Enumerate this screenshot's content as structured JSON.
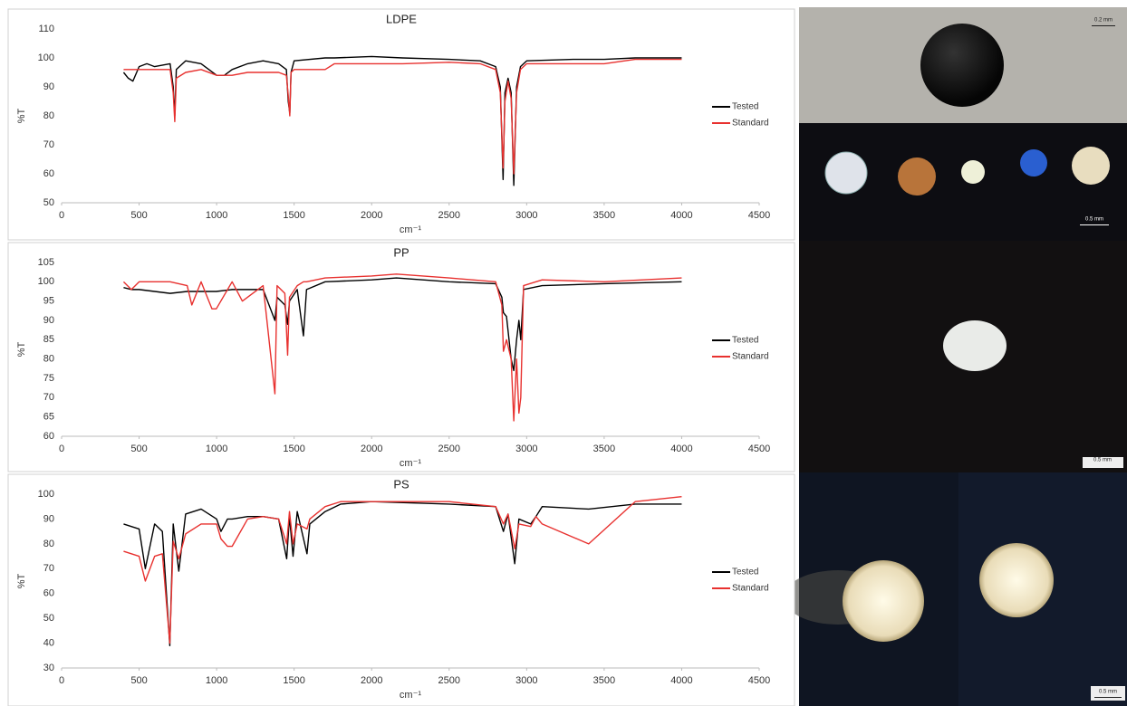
{
  "chart_data": [
    {
      "type": "line",
      "title": "LDPE",
      "x_label": "cm⁻¹",
      "y_label": "%T",
      "xlim": [
        0,
        4500
      ],
      "xticks": [
        0,
        500,
        1000,
        1500,
        2000,
        2500,
        3000,
        3500,
        4000,
        4500
      ],
      "ylim": [
        50,
        110
      ],
      "yticks": [
        50,
        60,
        70,
        80,
        90,
        100,
        110
      ],
      "grid": false,
      "legend": "right",
      "x": [
        400,
        430,
        460,
        500,
        550,
        600,
        700,
        720,
        730,
        740,
        800,
        900,
        1000,
        1050,
        1100,
        1200,
        1300,
        1400,
        1450,
        1462,
        1472,
        1480,
        1500,
        1700,
        1760,
        2000,
        2200,
        2500,
        2700,
        2800,
        2830,
        2848,
        2860,
        2880,
        2900,
        2917,
        2935,
        2960,
        3000,
        3300,
        3500,
        3700,
        4000
      ],
      "series": [
        {
          "name": "Tested",
          "color": "#000000",
          "values": [
            95,
            93,
            92,
            97,
            98,
            97,
            98,
            90,
            80,
            96,
            99,
            98,
            94,
            94,
            96,
            98,
            99,
            98,
            96,
            85,
            81,
            95,
            99,
            100,
            100,
            100.5,
            100,
            99.5,
            99,
            97,
            90,
            58,
            88,
            93,
            88,
            56,
            90,
            97,
            99,
            99.5,
            99.5,
            100,
            100
          ]
        },
        {
          "name": "Standard",
          "color": "#e8312f",
          "values": [
            96,
            96,
            96,
            96,
            96,
            96,
            96,
            88,
            78,
            93,
            95,
            96,
            94,
            94,
            94,
            95,
            95,
            95,
            94,
            87,
            80,
            95,
            96,
            96,
            98,
            98,
            98,
            98.5,
            98,
            96,
            88,
            62,
            85,
            92,
            86,
            60,
            88,
            96,
            98,
            98,
            98,
            99.5,
            99.5
          ]
        }
      ]
    },
    {
      "type": "line",
      "title": "PP",
      "x_label": "cm⁻¹",
      "y_label": "%T",
      "xlim": [
        0,
        4500
      ],
      "xticks": [
        0,
        500,
        1000,
        1500,
        2000,
        2500,
        3000,
        3500,
        4000,
        4500
      ],
      "ylim": [
        60,
        105
      ],
      "yticks": [
        60,
        65,
        70,
        75,
        80,
        85,
        90,
        95,
        100,
        105
      ],
      "grid": false,
      "legend": "right",
      "x": [
        400,
        450,
        500,
        700,
        810,
        840,
        900,
        970,
        998,
        1100,
        1166,
        1300,
        1376,
        1390,
        1440,
        1458,
        1470,
        1520,
        1560,
        1580,
        1700,
        2000,
        2160,
        2500,
        2800,
        2840,
        2850,
        2870,
        2900,
        2917,
        2935,
        2950,
        2962,
        2980,
        3100,
        3500,
        4000
      ],
      "series": [
        {
          "name": "Tested",
          "color": "#000000",
          "values": [
            98.5,
            98,
            98,
            97,
            97.5,
            97.5,
            97.5,
            97.5,
            97.5,
            98,
            98,
            98,
            90,
            96,
            94,
            89,
            95,
            98,
            86,
            98,
            100,
            100.5,
            101,
            100,
            99.5,
            96,
            92,
            91,
            80,
            77,
            85,
            90,
            85,
            98,
            99,
            99.5,
            100
          ]
        },
        {
          "name": "Standard",
          "color": "#e8312f",
          "values": [
            100,
            98,
            100,
            100,
            99,
            94,
            100,
            93,
            93,
            100,
            95,
            99,
            71,
            99,
            97,
            81,
            96,
            99,
            100,
            100,
            101,
            101.5,
            102,
            101,
            100,
            94,
            82,
            85,
            80,
            64,
            80,
            66,
            70,
            99,
            100.5,
            100,
            101
          ]
        }
      ]
    },
    {
      "type": "line",
      "title": "PS",
      "x_label": "cm⁻¹",
      "y_label": "%T",
      "xlim": [
        0,
        4500
      ],
      "xticks": [
        0,
        500,
        1000,
        1500,
        2000,
        2500,
        3000,
        3500,
        4000,
        4500
      ],
      "ylim": [
        30,
        100
      ],
      "yticks": [
        30,
        40,
        50,
        60,
        70,
        80,
        90,
        100
      ],
      "grid": false,
      "legend": "right",
      "x": [
        400,
        500,
        540,
        600,
        650,
        698,
        720,
        756,
        800,
        900,
        1000,
        1028,
        1070,
        1100,
        1200,
        1300,
        1400,
        1452,
        1470,
        1493,
        1520,
        1583,
        1601,
        1700,
        1800,
        2000,
        2500,
        2800,
        2850,
        2880,
        2923,
        2950,
        3026,
        3060,
        3100,
        3400,
        3700,
        4000
      ],
      "series": [
        {
          "name": "Tested",
          "color": "#000000",
          "values": [
            88,
            86,
            70,
            88,
            85,
            39,
            88,
            69,
            92,
            94,
            90,
            85,
            90,
            90,
            91,
            91,
            90,
            74,
            91,
            75,
            93,
            76,
            88,
            93,
            96,
            97,
            96,
            95,
            85,
            92,
            72,
            90,
            88,
            91,
            95,
            94,
            96,
            96
          ]
        },
        {
          "name": "Standard",
          "color": "#e8312f",
          "values": [
            77,
            75,
            65,
            75,
            76,
            40,
            81,
            74,
            84,
            88,
            88,
            82,
            79,
            79,
            90,
            91,
            90,
            80,
            93,
            80,
            88,
            86,
            90,
            95,
            97,
            97,
            97,
            95,
            88,
            92,
            78,
            88,
            87,
            91,
            88,
            80,
            97,
            99
          ]
        }
      ]
    }
  ],
  "micrographs": [
    {
      "scale_label": "0.2 mm"
    },
    {
      "scale_label": "0.5 mm"
    },
    {
      "scale_label": "0.5 mm"
    },
    {
      "scale_label": "0.5 mm"
    }
  ]
}
